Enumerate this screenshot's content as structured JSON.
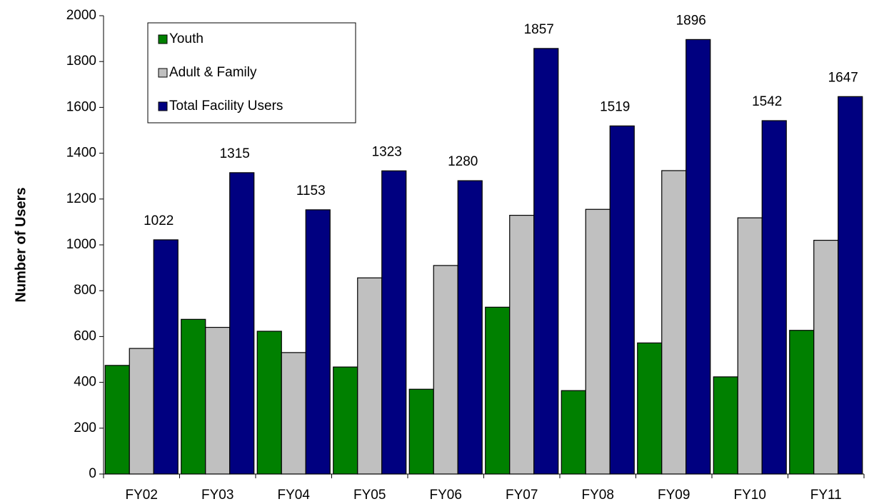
{
  "chart_data": {
    "type": "bar",
    "y_label": "Number of Users",
    "categories": [
      "FY02",
      "FY03",
      "FY04",
      "FY05",
      "FY06",
      "FY07",
      "FY08",
      "FY09",
      "FY10",
      "FY11"
    ],
    "series": [
      {
        "name": "Youth",
        "color": "#008000",
        "values": [
          474,
          675,
          623,
          467,
          370,
          728,
          364,
          572,
          424,
          627
        ]
      },
      {
        "name": "Adult & Family",
        "color": "#c0c0c0",
        "values": [
          548,
          640,
          530,
          856,
          910,
          1129,
          1155,
          1324,
          1118,
          1020
        ]
      },
      {
        "name": "Total Facility Users",
        "color": "#000080",
        "values": [
          1022,
          1315,
          1153,
          1323,
          1280,
          1857,
          1519,
          1896,
          1542,
          1647
        ],
        "show_labels": true
      }
    ],
    "ylim": [
      0,
      2000
    ],
    "yticks": [
      0,
      200,
      400,
      600,
      800,
      1000,
      1200,
      1400,
      1600,
      1800,
      2000
    ],
    "grid": false,
    "legend": "upper left"
  }
}
